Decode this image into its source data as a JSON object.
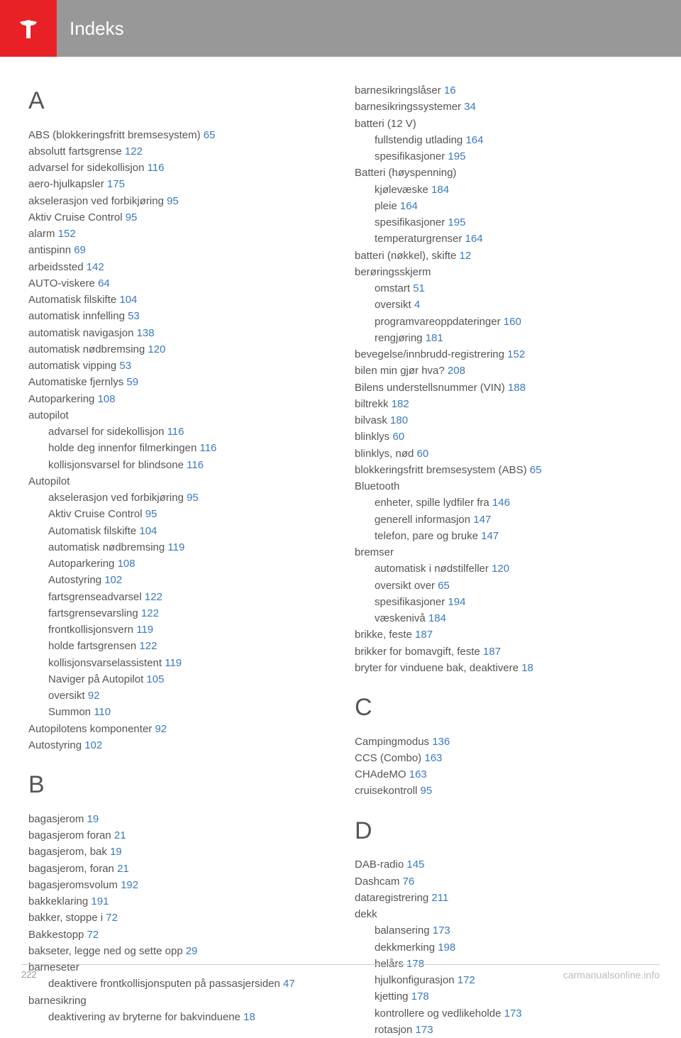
{
  "colors": {
    "logo_bg": "#e82127",
    "header_bg": "#989898",
    "link": "#3a7ab8",
    "text": "#555555"
  },
  "header": {
    "title": "Indeks"
  },
  "footer": {
    "page_num": "222",
    "watermark": "carmanualsonline.info"
  },
  "left": {
    "A": {
      "letter": "A",
      "items": [
        {
          "t": "ABS (blokkeringsfritt bremsesystem)",
          "p": "65"
        },
        {
          "t": "absolutt fartsgrense",
          "p": "122"
        },
        {
          "t": "advarsel for sidekollisjon",
          "p": "116"
        },
        {
          "t": "aero-hjulkapsler",
          "p": "175"
        },
        {
          "t": "akselerasjon ved forbikjøring",
          "p": "95"
        },
        {
          "t": "Aktiv Cruise Control",
          "p": "95"
        },
        {
          "t": "alarm",
          "p": "152"
        },
        {
          "t": "antispinn",
          "p": "69"
        },
        {
          "t": "arbeidssted",
          "p": "142"
        },
        {
          "t": "AUTO-viskere",
          "p": "64"
        },
        {
          "t": "Automatisk filskifte",
          "p": "104"
        },
        {
          "t": "automatisk innfelling",
          "p": "53"
        },
        {
          "t": "automatisk navigasjon",
          "p": "138"
        },
        {
          "t": "automatisk nødbremsing",
          "p": "120"
        },
        {
          "t": "automatisk vipping",
          "p": "53"
        },
        {
          "t": "Automatiske fjernlys",
          "p": "59"
        },
        {
          "t": "Autoparkering",
          "p": "108"
        },
        {
          "t": "autopilot",
          "sub": [
            {
              "t": "advarsel for sidekollisjon",
              "p": "116"
            },
            {
              "t": "holde deg innenfor filmerkingen",
              "p": "116"
            },
            {
              "t": "kollisjonsvarsel for blindsone",
              "p": "116"
            }
          ]
        },
        {
          "t": "Autopilot",
          "sub": [
            {
              "t": "akselerasjon ved forbikjøring",
              "p": "95"
            },
            {
              "t": "Aktiv Cruise Control",
              "p": "95"
            },
            {
              "t": "Automatisk filskifte",
              "p": "104"
            },
            {
              "t": "automatisk nødbremsing",
              "p": "119"
            },
            {
              "t": "Autoparkering",
              "p": "108"
            },
            {
              "t": "Autostyring",
              "p": "102"
            },
            {
              "t": "fartsgrenseadvarsel",
              "p": "122"
            },
            {
              "t": "fartsgrensevarsling",
              "p": "122"
            },
            {
              "t": "frontkollisjonsvern",
              "p": "119"
            },
            {
              "t": "holde fartsgrensen",
              "p": "122"
            },
            {
              "t": "kollisjonsvarselassistent",
              "p": "119"
            },
            {
              "t": "Naviger på Autopilot",
              "p": "105"
            },
            {
              "t": "oversikt",
              "p": "92"
            },
            {
              "t": "Summon",
              "p": "110"
            }
          ]
        },
        {
          "t": "Autopilotens komponenter",
          "p": "92"
        },
        {
          "t": "Autostyring",
          "p": "102"
        }
      ]
    },
    "B": {
      "letter": "B",
      "items": [
        {
          "t": "bagasjerom",
          "p": "19"
        },
        {
          "t": "bagasjerom foran",
          "p": "21"
        },
        {
          "t": "bagasjerom, bak",
          "p": "19"
        },
        {
          "t": "bagasjerom, foran",
          "p": "21"
        },
        {
          "t": "bagasjeromsvolum",
          "p": "192"
        },
        {
          "t": "bakkeklaring",
          "p": "191"
        },
        {
          "t": "bakker, stoppe i",
          "p": "72"
        },
        {
          "t": "Bakkestopp",
          "p": "72"
        },
        {
          "t": "bakseter, legge ned og sette opp",
          "p": "29"
        },
        {
          "t": "barneseter",
          "sub": [
            {
              "t": "deaktivere frontkollisjonsputen på passasjersiden",
              "p": "47"
            }
          ]
        },
        {
          "t": "barnesikring",
          "sub": [
            {
              "t": "deaktivering av bryterne for bakvinduene",
              "p": "18"
            }
          ]
        }
      ]
    }
  },
  "right": {
    "Bcont": {
      "items": [
        {
          "t": "barnesikringslåser",
          "p": "16"
        },
        {
          "t": "barnesikringssystemer",
          "p": "34"
        },
        {
          "t": "batteri (12 V)",
          "sub": [
            {
              "t": "fullstendig utlading",
              "p": "164"
            },
            {
              "t": "spesifikasjoner",
              "p": "195"
            }
          ]
        },
        {
          "t": "Batteri (høyspenning)",
          "sub": [
            {
              "t": "kjølevæske",
              "p": "184"
            },
            {
              "t": "pleie",
              "p": "164"
            },
            {
              "t": "spesifikasjoner",
              "p": "195"
            },
            {
              "t": "temperaturgrenser",
              "p": "164"
            }
          ]
        },
        {
          "t": "batteri (nøkkel), skifte",
          "p": "12"
        },
        {
          "t": "berøringsskjerm",
          "sub": [
            {
              "t": "omstart",
              "p": "51"
            },
            {
              "t": "oversikt",
              "p": "4"
            },
            {
              "t": "programvareoppdateringer",
              "p": "160"
            },
            {
              "t": "rengjøring",
              "p": "181"
            }
          ]
        },
        {
          "t": "bevegelse/innbrudd-registrering",
          "p": "152"
        },
        {
          "t": "bilen min gjør hva?",
          "p": "208"
        },
        {
          "t": "Bilens understellsnummer (VIN)",
          "p": "188"
        },
        {
          "t": "biltrekk",
          "p": "182"
        },
        {
          "t": "bilvask",
          "p": "180"
        },
        {
          "t": "blinklys",
          "p": "60"
        },
        {
          "t": "blinklys, nød",
          "p": "60"
        },
        {
          "t": "blokkeringsfritt bremsesystem (ABS)",
          "p": "65"
        },
        {
          "t": "Bluetooth",
          "sub": [
            {
              "t": "enheter, spille lydfiler fra",
              "p": "146"
            },
            {
              "t": "generell informasjon",
              "p": "147"
            },
            {
              "t": "telefon, pare og bruke",
              "p": "147"
            }
          ]
        },
        {
          "t": "bremser",
          "sub": [
            {
              "t": "automatisk i nødstilfeller",
              "p": "120"
            },
            {
              "t": "oversikt over",
              "p": "65"
            },
            {
              "t": "spesifikasjoner",
              "p": "194"
            },
            {
              "t": "væskenivå",
              "p": "184"
            }
          ]
        },
        {
          "t": "brikke, feste",
          "p": "187"
        },
        {
          "t": "brikker for bomavgift, feste",
          "p": "187"
        },
        {
          "t": "bryter for vinduene bak, deaktivere",
          "p": "18"
        }
      ]
    },
    "C": {
      "letter": "C",
      "items": [
        {
          "t": "Campingmodus",
          "p": "136"
        },
        {
          "t": "CCS (Combo)",
          "p": "163"
        },
        {
          "t": "CHAdeMO",
          "p": "163"
        },
        {
          "t": "cruisekontroll",
          "p": "95"
        }
      ]
    },
    "D": {
      "letter": "D",
      "items": [
        {
          "t": "DAB-radio",
          "p": "145"
        },
        {
          "t": "Dashcam",
          "p": "76"
        },
        {
          "t": "dataregistrering",
          "p": "211"
        },
        {
          "t": "dekk",
          "sub": [
            {
              "t": "balansering",
              "p": "173"
            },
            {
              "t": "dekkmerking",
              "p": "198"
            },
            {
              "t": "helårs",
              "p": "178"
            },
            {
              "t": "hjulkonfigurasjon",
              "p": "172"
            },
            {
              "t": "kjetting",
              "p": "178"
            },
            {
              "t": "kontrollere og vedlikeholde",
              "p": "173"
            },
            {
              "t": "rotasjon",
              "p": "173"
            }
          ]
        }
      ]
    }
  }
}
